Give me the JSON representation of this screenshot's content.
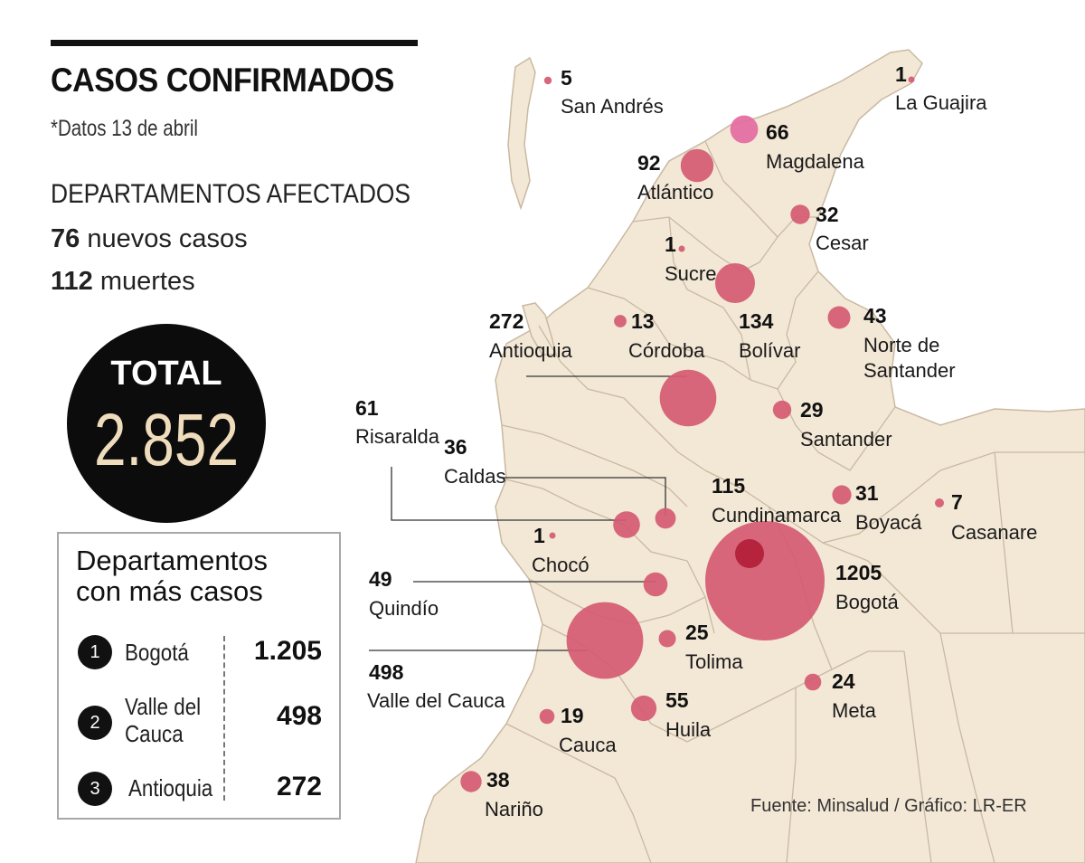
{
  "header": {
    "title": "CASOS CONFIRMADOS",
    "subtitle": "*Datos 13 de abril",
    "section": "DEPARTAMENTOS AFECTADOS",
    "new_cases_value": "76",
    "new_cases_label": "nuevos casos",
    "deaths_value": "112",
    "deaths_label": "muertes"
  },
  "total": {
    "label": "TOTAL",
    "value": "2.852"
  },
  "ranking": {
    "title_line1": "Departamentos",
    "title_line2": "con más casos",
    "items": [
      {
        "rank": "1",
        "name_line1": "Bogotá",
        "name_line2": "",
        "value": "1.205"
      },
      {
        "rank": "2",
        "name_line1": "Valle del",
        "name_line2": "Cauca",
        "value": "498"
      },
      {
        "rank": "3",
        "name_line1": "Antioquia",
        "name_line2": "",
        "value": "272"
      }
    ]
  },
  "source": "Fuente: Minsalud / Gráfico: LR-ER",
  "colors": {
    "bubble": "#d55a73",
    "bubble_highlight": "#e46aa0",
    "bogota_core": "#b5233d",
    "land": "#f3e8d6",
    "border": "#c9b9a2"
  },
  "chart_data": {
    "type": "bubble-map",
    "title": "CASOS CONFIRMADOS",
    "departments": [
      {
        "name": "San Andrés",
        "value": 5
      },
      {
        "name": "La Guajira",
        "value": 1
      },
      {
        "name": "Magdalena",
        "value": 66
      },
      {
        "name": "Atlántico",
        "value": 92
      },
      {
        "name": "Cesar",
        "value": 32
      },
      {
        "name": "Sucre",
        "value": 1
      },
      {
        "name": "Bolívar",
        "value": 134
      },
      {
        "name": "Córdoba",
        "value": 13
      },
      {
        "name": "Norte de Santander",
        "value": 43
      },
      {
        "name": "Antioquia",
        "value": 272
      },
      {
        "name": "Santander",
        "value": 29
      },
      {
        "name": "Risaralda",
        "value": 61
      },
      {
        "name": "Caldas",
        "value": 36
      },
      {
        "name": "Cundinamarca",
        "value": 115
      },
      {
        "name": "Boyacá",
        "value": 31
      },
      {
        "name": "Casanare",
        "value": 7
      },
      {
        "name": "Chocó",
        "value": 1
      },
      {
        "name": "Quindío",
        "value": 49
      },
      {
        "name": "Bogotá",
        "value": 1205
      },
      {
        "name": "Valle del Cauca",
        "value": 498
      },
      {
        "name": "Tolima",
        "value": 25
      },
      {
        "name": "Meta",
        "value": 24
      },
      {
        "name": "Huila",
        "value": 55
      },
      {
        "name": "Cauca",
        "value": 19
      },
      {
        "name": "Nariño",
        "value": 38
      }
    ]
  }
}
